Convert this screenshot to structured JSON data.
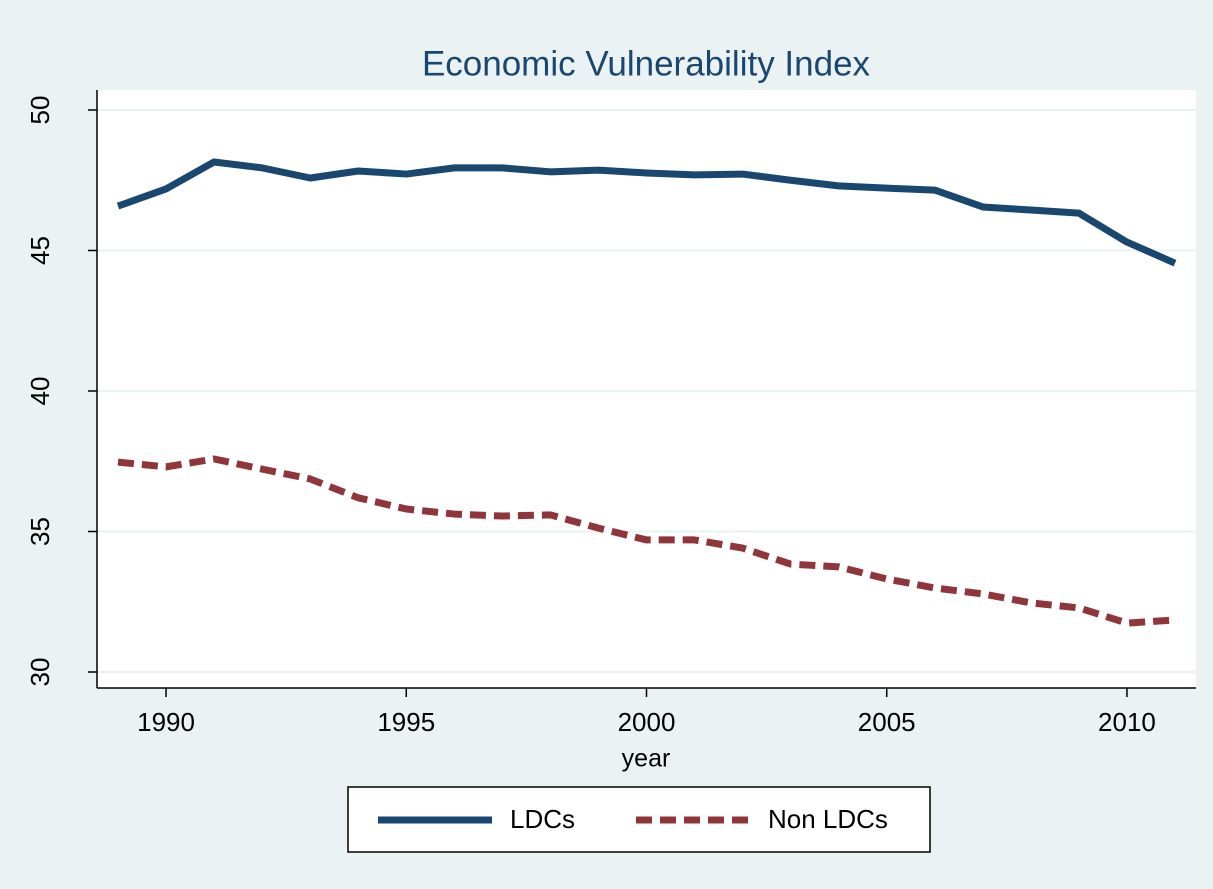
{
  "chart_data": {
    "type": "line",
    "title": "Economic Vulnerability Index",
    "x_label": "year",
    "x": [
      1989,
      1990,
      1991,
      1992,
      1993,
      1994,
      1995,
      1996,
      1997,
      1998,
      1999,
      2000,
      2001,
      2002,
      2003,
      2004,
      2005,
      2006,
      2007,
      2008,
      2009,
      2010,
      2011
    ],
    "series": [
      {
        "name": "LDCs",
        "color": "#1a476f",
        "dashed": false,
        "values": [
          46.58,
          47.19,
          48.15,
          47.94,
          47.58,
          47.83,
          47.72,
          47.94,
          47.94,
          47.8,
          47.86,
          47.76,
          47.69,
          47.72,
          47.5,
          47.3,
          47.22,
          47.15,
          46.55,
          46.44,
          46.33,
          45.3,
          44.55
        ]
      },
      {
        "name": "Non LDCs",
        "color": "#90353b",
        "dashed": true,
        "values": [
          37.47,
          37.3,
          37.58,
          37.22,
          36.87,
          36.2,
          35.8,
          35.62,
          35.55,
          35.59,
          35.12,
          34.7,
          34.7,
          34.41,
          33.84,
          33.74,
          33.31,
          32.99,
          32.78,
          32.46,
          32.28,
          31.74,
          31.85
        ]
      }
    ],
    "xlim": [
      1989,
      2011
    ],
    "xticks": [
      1990,
      1995,
      2000,
      2005,
      2010
    ],
    "ylim": [
      30,
      50
    ],
    "yticks": [
      30,
      35,
      40,
      45,
      50
    ],
    "grid": true,
    "legend": "bottom"
  }
}
